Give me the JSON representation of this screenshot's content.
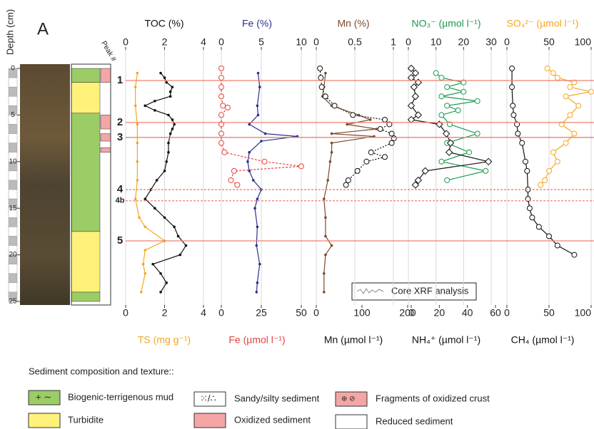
{
  "chart_data": {
    "type": "line",
    "panel_label": "A",
    "ylabel": "Depth (cm)",
    "ylim": [
      0,
      25
    ],
    "yticks": [
      0,
      5,
      10,
      15,
      20,
      25
    ],
    "peaks_label": "Peak #",
    "peaks": [
      {
        "label": "1",
        "depth": 1.3
      },
      {
        "label": "2",
        "depth": 5.8
      },
      {
        "label": "3",
        "depth": 7.4
      },
      {
        "label": "4",
        "depth": 13
      },
      {
        "label": "4b",
        "depth": 14.2
      },
      {
        "label": "5",
        "depth": 18.5
      }
    ],
    "xrf_label": "Core XRF analysis",
    "panels": [
      {
        "top": {
          "xlim": [
            0,
            4
          ],
          "xticks": [
            0,
            2,
            4
          ]
        },
        "bottom": {
          "xlim": [
            0,
            4
          ],
          "xticks": [
            0,
            2,
            4
          ]
        },
        "series": [
          {
            "name": "TOC (%)",
            "axis": "top",
            "color": "#111111",
            "marker": "dot",
            "depth": [
              0.5,
              1,
              1.5,
              2,
              2.5,
              3,
              3.5,
              4,
              4.5,
              5,
              5.5,
              6,
              6.5,
              7,
              8,
              9,
              10,
              11,
              12,
              13,
              14,
              15,
              16,
              17,
              18,
              19,
              20,
              21,
              22,
              23,
              24
            ],
            "values": [
              1.8,
              2,
              2.1,
              2.4,
              2.3,
              2.3,
              1.5,
              1.0,
              1.5,
              2.2,
              2.4,
              2.5,
              2.4,
              2.3,
              2.2,
              2.2,
              2.1,
              2.0,
              1.6,
              1.3,
              1.0,
              1.5,
              2.0,
              2.5,
              2.7,
              3.1,
              2.8,
              1.4,
              1.8,
              2.1,
              1.8
            ]
          },
          {
            "name": "TS (mg g⁻¹)",
            "axis": "bottom",
            "color": "#f5a623",
            "marker": "dot",
            "depth": [
              0.5,
              2,
              4,
              6,
              8,
              10,
              12,
              14,
              16,
              17,
              18.5,
              19.5,
              21,
              22,
              24
            ],
            "values": [
              0.6,
              0.5,
              0.5,
              0.6,
              0.6,
              0.6,
              0.6,
              0.5,
              0.7,
              1.0,
              2.0,
              1.0,
              0.9,
              1.0,
              0.8
            ]
          }
        ]
      },
      {
        "top": {
          "xlim": [
            0,
            10
          ],
          "xticks": [
            0,
            5,
            10
          ]
        },
        "bottom": {
          "xlim": [
            0,
            50
          ],
          "xticks": [
            0,
            25,
            50
          ]
        },
        "series": [
          {
            "name": "Fe (%)",
            "axis": "top",
            "color": "#2b2f8f",
            "marker": "dot",
            "depth": [
              0.5,
              2,
              4,
              5,
              6,
              7,
              7.3,
              7.8,
              9,
              10,
              11,
              12,
              13,
              14,
              15,
              17,
              19,
              21,
              23,
              24
            ],
            "values": [
              4.6,
              4.8,
              4.5,
              4.6,
              3.5,
              5.5,
              9.5,
              5,
              3.5,
              3.3,
              3.5,
              4.0,
              5,
              4.5,
              4.2,
              4.5,
              4.4,
              4.8,
              4.5,
              4.4
            ]
          },
          {
            "name": "Fe (µmol l⁻¹)",
            "axis": "bottom",
            "color": "#e8423c",
            "marker": "circle",
            "dash": "3,2",
            "depth": [
              0,
              1,
              2,
              3,
              4,
              4.2,
              5,
              6,
              7,
              8,
              9,
              10,
              10.5,
              11,
              12,
              12.5
            ],
            "values": [
              0,
              0,
              0,
              0,
              1,
              4,
              0,
              0,
              0,
              0,
              2,
              27,
              50,
              8,
              6,
              10
            ]
          }
        ]
      },
      {
        "top": {
          "xlim": [
            0,
            1
          ],
          "xticks": [
            0,
            0.5,
            1
          ]
        },
        "bottom": {
          "xlim": [
            0,
            200
          ],
          "xticks": [
            0,
            100,
            200
          ]
        },
        "series": [
          {
            "name": "Mn (%)",
            "axis": "top",
            "color": "#7a4a2a",
            "marker": "dot",
            "depth": [
              0.5,
              2,
              3,
              4,
              5,
              5.5,
              6,
              6.5,
              7,
              7.3,
              8,
              9,
              10,
              12,
              14,
              16,
              18,
              19,
              20,
              22,
              24
            ],
            "values": [
              0.12,
              0.1,
              0.08,
              0.2,
              0.55,
              0.7,
              0.4,
              0.78,
              0.2,
              0.75,
              0.2,
              0.2,
              0.18,
              0.15,
              0.1,
              0.12,
              0.12,
              0.2,
              0.12,
              0.1,
              0.1
            ]
          },
          {
            "name": "Mn (µmol l⁻¹)",
            "axis": "bottom",
            "color": "#111111",
            "marker": "circle",
            "dash": "2,2",
            "depth": [
              0,
              1,
              2,
              3,
              4,
              5,
              5.5,
              6,
              6.5,
              7,
              7.5,
              8,
              9,
              9.5,
              10,
              11,
              12,
              12.5
            ],
            "values": [
              8,
              10,
              12,
              20,
              40,
              80,
              150,
              160,
              140,
              165,
              170,
              165,
              120,
              150,
              110,
              90,
              70,
              65
            ]
          }
        ]
      },
      {
        "top": {
          "xlim": [
            0,
            30
          ],
          "xticks": [
            0,
            10,
            20,
            30
          ]
        },
        "bottom": {
          "xlim": [
            0,
            60
          ],
          "xticks": [
            0,
            20,
            40,
            60
          ]
        },
        "series": [
          {
            "name": "NO₃⁻ (µmol l⁻¹)",
            "axis": "top",
            "color": "#1a9a50",
            "marker": "circle",
            "depth": [
              0.5,
              1,
              1.5,
              2,
              2.5,
              3,
              3.5,
              4,
              4.5,
              5,
              6,
              7,
              8,
              9,
              10,
              11,
              12
            ],
            "values": [
              10,
              12,
              20,
              14,
              20,
              12,
              25,
              14,
              18,
              12,
              15,
              25,
              14,
              22,
              12,
              28,
              14
            ]
          },
          {
            "name": "NH₄⁺ (µmol l⁻¹)",
            "axis": "bottom",
            "color": "#111111",
            "marker": "diamond",
            "depth": [
              0,
              0.5,
              1,
              1.5,
              2,
              3,
              4,
              5,
              5.5,
              6,
              7,
              8,
              9,
              10,
              11,
              12,
              12.5
            ],
            "values": [
              0,
              3,
              0,
              5,
              2,
              3,
              0,
              5,
              0,
              20,
              25,
              28,
              27,
              55,
              10,
              5,
              3
            ]
          }
        ]
      },
      {
        "top": {
          "xlim": [
            0,
            100
          ],
          "xticks": [
            0,
            50,
            100
          ]
        },
        "bottom": {
          "xlim": [
            0,
            100
          ],
          "xticks": [
            0,
            50,
            100
          ]
        },
        "series": [
          {
            "name": "SO₄²⁻ (µmol l⁻¹)",
            "axis": "top",
            "color": "#f5a623",
            "marker": "circle",
            "depth": [
              0,
              0.5,
              1,
              1.5,
              2,
              2.5,
              3,
              4,
              5,
              6,
              7,
              8,
              9,
              10,
              11,
              12,
              12.5
            ],
            "values": [
              48,
              55,
              60,
              80,
              75,
              100,
              70,
              85,
              75,
              65,
              80,
              70,
              55,
              60,
              50,
              45,
              40
            ]
          },
          {
            "name": "CH₄ (µmol l⁻¹)",
            "axis": "bottom",
            "color": "#111111",
            "marker": "circle",
            "depth": [
              0,
              2,
              4,
              5,
              6,
              7,
              8,
              10,
              11,
              13,
              14,
              15,
              16,
              17,
              18,
              19,
              20
            ],
            "values": [
              6,
              6,
              7,
              8,
              12,
              13,
              18,
              22,
              24,
              25,
              25,
              27,
              30,
              38,
              50,
              60,
              80
            ]
          }
        ]
      }
    ]
  },
  "legend": {
    "title": "Sediment composition and texture::",
    "items": [
      "Biogenic-terrigenous mud",
      "Turbidite",
      "Sandy/silty sediment",
      "Oxidized sediment",
      "Fragments of oxidized crust",
      "Reduced sediment"
    ]
  }
}
